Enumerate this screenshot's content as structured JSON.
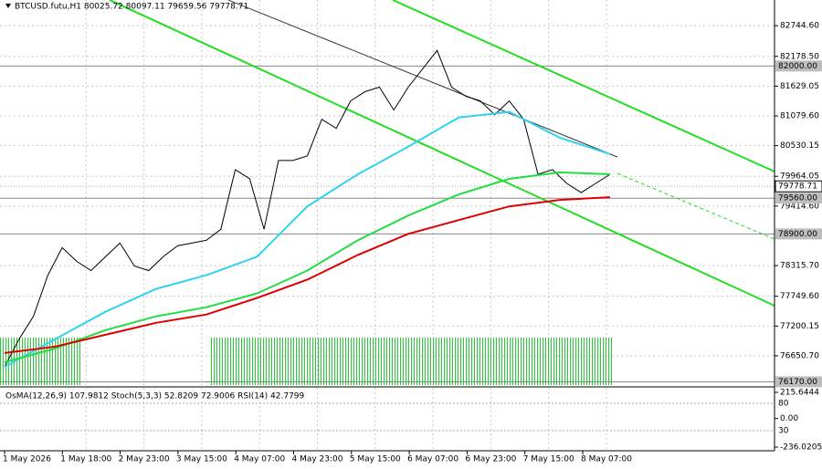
{
  "chart_data": {
    "type": "line",
    "title": "BTCUSD.futu,H1  80025.72 80097.11 79659.56 79778.71",
    "xticks": [
      "1 May 2026",
      "1 May 18:00",
      "2 May 23:00",
      "3 May 15:00",
      "4 May 07:00",
      "4 May 23:00",
      "5 May 15:00",
      "6 May 07:00",
      "6 May 23:00",
      "7 May 15:00",
      "8 May 07:00"
    ],
    "ylim": [
      76110,
      83219
    ],
    "yticks": [
      {
        "value": 82744.6,
        "label": "82744.60"
      },
      {
        "value": 82178.5,
        "label": "82178.50"
      },
      {
        "value": 81629.05,
        "label": "81629.05"
      },
      {
        "value": 81079.6,
        "label": "81079.60"
      },
      {
        "value": 80530.15,
        "label": "80530.15"
      },
      {
        "value": 79964.05,
        "label": "79964.05"
      },
      {
        "value": 79414.6,
        "label": "79414.60"
      },
      {
        "value": 78315.7,
        "label": "78315.70"
      },
      {
        "value": 77749.6,
        "label": "77749.60"
      },
      {
        "value": 77200.15,
        "label": "77200.15"
      },
      {
        "value": 76650.7,
        "label": "76650.70"
      }
    ],
    "grid": true,
    "series": [
      {
        "color": "#000000",
        "values": [
          76447,
          76955,
          77378,
          78139,
          78647,
          78394,
          78224,
          78478,
          78732,
          78309,
          78224,
          78478,
          78681,
          78732,
          78783,
          78986,
          80087,
          79917,
          78986,
          80256,
          80256,
          80341,
          81018,
          80848,
          81356,
          81526,
          81610,
          81187,
          81610,
          81949,
          82287,
          81610,
          81441,
          81356,
          81102,
          81356,
          81018,
          80002,
          80087,
          79833,
          79663,
          79833,
          80002
        ]
      },
      {
        "color": "#2fd3f0",
        "values": [
          76447,
          76955,
          77463,
          77886,
          78139,
          78478,
          79409,
          80002,
          80510,
          81051,
          81153,
          80679,
          80374
        ]
      },
      {
        "color": "#22dd44",
        "values": [
          76531,
          76785,
          77124,
          77378,
          77547,
          77801,
          78224,
          78783,
          79240,
          79629,
          79917,
          80036,
          80002
        ]
      },
      {
        "color": "#e00000",
        "values": [
          76701,
          76819,
          77039,
          77259,
          77412,
          77717,
          78055,
          78512,
          78901,
          79155,
          79409,
          79528,
          79578
        ]
      }
    ],
    "levels": [
      {
        "value": 82000,
        "label": "82000.00"
      },
      {
        "value": 79560,
        "label": "79560.00"
      },
      {
        "value": 78900,
        "label": "78900.00"
      },
      {
        "value": 76170,
        "label": "76170.00"
      }
    ],
    "price": {
      "value": 79778.71,
      "label": "79778.71"
    }
  },
  "indicator": {
    "title": "OsMA(12,26,9) 107.9812  Stoch(5,3,3) 52.8209 72.9006  RSI(14) 42.7799",
    "ylim": [
      -236.0205,
      215.6444
    ],
    "yticks": [
      {
        "value": 215.6444,
        "label": "215.6444"
      },
      {
        "value": 0,
        "label": "0.00"
      },
      {
        "value": -236.0205,
        "label": "-236.0205"
      }
    ],
    "stoch_ylim": [
      0,
      100
    ],
    "stoch_levels": [
      80,
      30
    ]
  }
}
